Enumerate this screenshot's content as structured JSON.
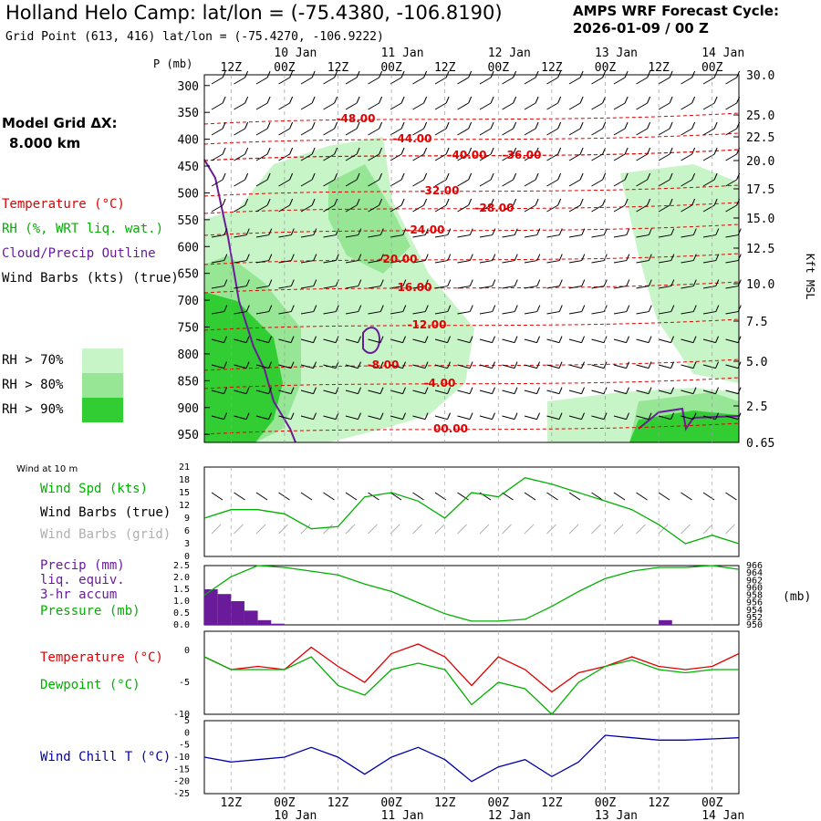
{
  "header": {
    "title": "Holland Helo Camp:  lat/lon = (-75.4380, -106.8190)",
    "grid_point": "Grid Point (613, 416) lat/lon = (-75.4270, -106.9222)",
    "cycle_line1": "AMPS WRF Forecast Cycle:",
    "cycle_line2": "2026-01-09 / 00  Z"
  },
  "legend": {
    "model_grid_line1": "Model Grid ΔX:",
    "model_grid_line2": "8.000 km",
    "temperature": "Temperature (°C)",
    "rh": "RH (%, WRT liq. wat.)",
    "cloud": "Cloud/Precip Outline",
    "wind_barbs": "Wind Barbs (kts) (true)",
    "rh70": "RH > 70%",
    "rh80": "RH > 80%",
    "rh90": "RH > 90%",
    "wind_at_10m": "Wind at 10 m",
    "wind_spd": "Wind Spd (kts)",
    "wind_barbs_true": "Wind Barbs (true)",
    "wind_barbs_grid": "Wind Barbs (grid)",
    "precip_1": "Precip (mm)",
    "precip_2": "liq. equiv.",
    "precip_3": "3-hr accum",
    "pressure": "Pressure (mb)",
    "temp2": "Temperature (°C)",
    "dewpoint": "Dewpoint (°C)",
    "windchill": "Wind Chill T (°C)"
  },
  "colors": {
    "temperature": "#e00000",
    "green": "#00b000",
    "purple": "#6a1b9a",
    "windchill": "#0000aa",
    "grid_barb": "#b0b0b0",
    "rh70": "#c8f5c8",
    "rh80": "#96e696",
    "rh90": "#32cd32"
  },
  "chart_data": [
    {
      "type": "heatmap",
      "name": "cross-section",
      "ylabel_left": "P (mb)",
      "ylabel_right": "Kft MSL",
      "pressure_ticks": [
        "300",
        "350",
        "400",
        "450",
        "500",
        "550",
        "600",
        "650",
        "700",
        "750",
        "800",
        "850",
        "900",
        "950"
      ],
      "height_ticks": [
        "30.0",
        "25.0",
        "22.5",
        "20.0",
        "17.5",
        "15.0",
        "12.5",
        "10.0",
        "7.5",
        "5.0",
        "2.5",
        "0.65"
      ],
      "time_ticks_top": [
        "12Z",
        "00Z",
        "12Z",
        "00Z",
        "12Z",
        "00Z",
        "12Z",
        "00Z",
        "12Z",
        "00Z"
      ],
      "date_ticks": [
        "10 Jan",
        "11 Jan",
        "12 Jan",
        "13 Jan",
        "14 Jan"
      ],
      "temperature_contour_labels": [
        "-48.00",
        "-44.00",
        "-40.00",
        "-36.00",
        "-32.00",
        "-28.00",
        "-24.00",
        "-20.00",
        "-16.00",
        "-12.00",
        "-8.00",
        "-4.00",
        "00.00"
      ]
    },
    {
      "type": "line",
      "name": "wind-speed",
      "ylim": [
        0,
        21
      ],
      "y_ticks": [
        "21",
        "18",
        "15",
        "12",
        "9",
        "6",
        "3",
        "0"
      ],
      "x_hours": [
        0,
        6,
        12,
        18,
        24,
        30,
        36,
        42,
        48,
        54,
        60,
        66,
        72,
        78,
        84,
        90,
        96,
        102,
        108,
        114,
        120
      ],
      "series": [
        {
          "name": "Wind Spd (kts)",
          "values": [
            9,
            11,
            11,
            10,
            6.5,
            7,
            14,
            15,
            13,
            9,
            15,
            14,
            18.5,
            17,
            15,
            13,
            11,
            7.5,
            3,
            5,
            3
          ]
        }
      ]
    },
    {
      "type": "bar",
      "name": "precip",
      "ylim": [
        0,
        2.5
      ],
      "y_ticks": [
        "2.5",
        "2.0",
        "1.5",
        "1.0",
        "0.5",
        "0.0"
      ],
      "bars_hours": [
        0,
        3,
        6,
        9,
        12,
        15,
        102
      ],
      "bars_values": [
        1.5,
        1.3,
        1.0,
        0.6,
        0.2,
        0.05,
        0.2
      ]
    },
    {
      "type": "line",
      "name": "pressure",
      "ylim": [
        950,
        966
      ],
      "y_ticks": [
        "966",
        "964",
        "962",
        "960",
        "958",
        "956",
        "954",
        "952",
        "950"
      ],
      "ylabel": "(mb)",
      "x_hours": [
        0,
        6,
        12,
        18,
        24,
        30,
        36,
        42,
        48,
        54,
        60,
        66,
        72,
        78,
        84,
        90,
        96,
        102,
        108,
        114,
        120
      ],
      "series": [
        {
          "name": "Pressure (mb)",
          "values": [
            958,
            963,
            966,
            965.5,
            964.5,
            963.5,
            961,
            959,
            956,
            953,
            951,
            951,
            951.5,
            955,
            959,
            962.5,
            964.5,
            965.5,
            965.5,
            966,
            965
          ]
        }
      ]
    },
    {
      "type": "line",
      "name": "temperature-dewpoint",
      "ylim": [
        -10,
        3
      ],
      "y_ticks": [
        "0",
        "-5",
        "-10"
      ],
      "x_hours": [
        0,
        6,
        12,
        18,
        24,
        30,
        36,
        42,
        48,
        54,
        60,
        66,
        72,
        78,
        84,
        90,
        96,
        102,
        108,
        114,
        120
      ],
      "series": [
        {
          "name": "Temperature (°C)",
          "values": [
            -1,
            -3,
            -2.5,
            -3,
            0.5,
            -2.5,
            -5,
            -0.5,
            1,
            -1,
            -5.5,
            -1,
            -3,
            -6.5,
            -3.5,
            -2.5,
            -1,
            -2.5,
            -3,
            -2.5,
            -0.5
          ]
        },
        {
          "name": "Dewpoint (°C)",
          "values": [
            -1,
            -3,
            -3,
            -3,
            -1,
            -5.5,
            -7,
            -3,
            -2,
            -3,
            -8.5,
            -5,
            -6,
            -10,
            -5,
            -2.5,
            -1.5,
            -3,
            -3.5,
            -3,
            -3
          ]
        }
      ]
    },
    {
      "type": "line",
      "name": "wind-chill",
      "ylim": [
        -25,
        5
      ],
      "y_ticks": [
        "5",
        "0",
        "-5",
        "-10",
        "-15",
        "-20",
        "-25"
      ],
      "x_hours": [
        0,
        6,
        12,
        18,
        24,
        30,
        36,
        42,
        48,
        54,
        60,
        66,
        72,
        78,
        84,
        90,
        96,
        102,
        108,
        114,
        120
      ],
      "series": [
        {
          "name": "Wind Chill T (°C)",
          "values": [
            -10,
            -12,
            -11,
            -10,
            -6,
            -10,
            -17,
            -10,
            -6,
            -11,
            -20,
            -14,
            -11,
            -18,
            -12,
            -1,
            -2,
            -3,
            -3,
            -2.5,
            -2
          ]
        }
      ]
    },
    {
      "type": "table",
      "name": "bottom-time-axis",
      "time_ticks_bottom": [
        "12Z",
        "00Z",
        "12Z",
        "00Z",
        "12Z",
        "00Z",
        "12Z",
        "00Z",
        "12Z",
        "00Z"
      ],
      "date_ticks": [
        "10 Jan",
        "11 Jan",
        "12 Jan",
        "13 Jan",
        "14 Jan"
      ]
    }
  ]
}
